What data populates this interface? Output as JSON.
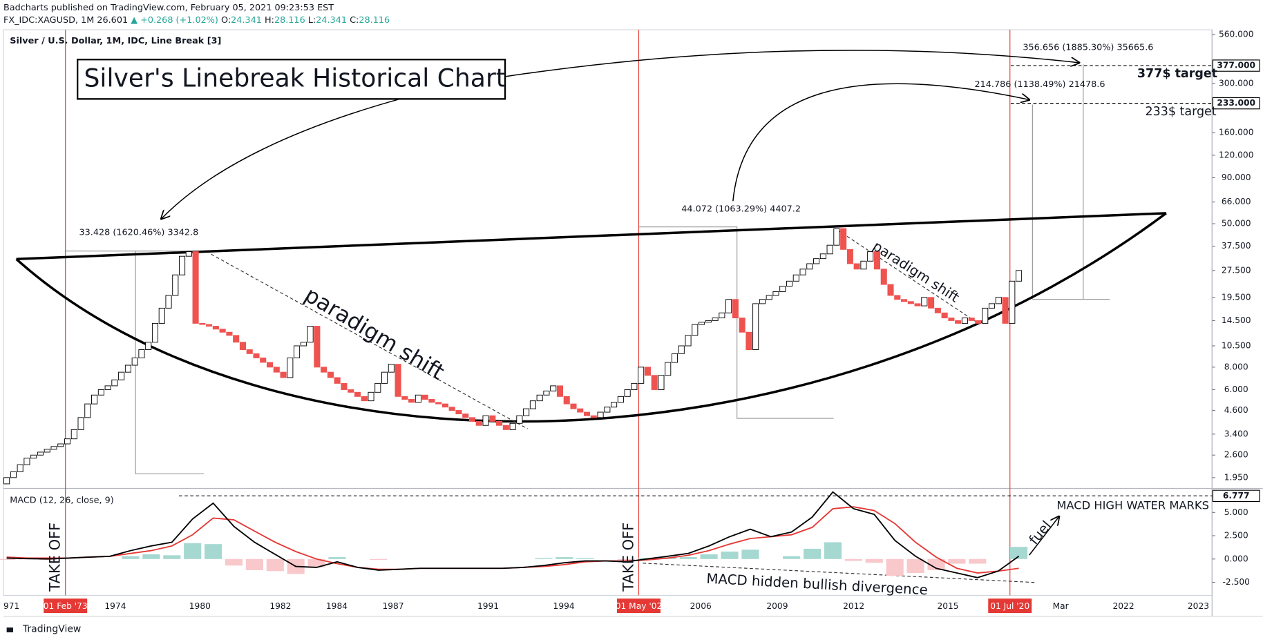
{
  "header": {
    "publisher": "Badcharts published on TradingView.com, February 05, 2021 09:23:53 EST",
    "symbol": "FX_IDC:XAGUSD, 1M",
    "last": 26.601,
    "change": "▲ +0.268 (+1.02%)",
    "ohlc": [
      {
        "label": "O:",
        "value": 24.341
      },
      {
        "label": "H:",
        "value": 28.116
      },
      {
        "label": "L:",
        "value": 24.341
      },
      {
        "label": "C:",
        "value": 28.116
      }
    ]
  },
  "chart_data": [
    {
      "type": "linebreak",
      "title": "Silver / U.S. Dollar, 1M, IDC, Line Break [3]",
      "log_scale": true,
      "up_color": "#ffffff",
      "down_color": "#ef5350",
      "outline_color": "#000000",
      "first_open": 1.8,
      "values": [
        1.95,
        2.1,
        2.3,
        2.5,
        2.6,
        2.7,
        2.8,
        2.9,
        3.0,
        3.2,
        3.6,
        4.2,
        5.0,
        5.6,
        6.0,
        6.3,
        6.8,
        7.5,
        8.2,
        9,
        10,
        11,
        14,
        17,
        20,
        26,
        33,
        35,
        14,
        13.8,
        13.5,
        13,
        12.5,
        12,
        11,
        10,
        9.5,
        9,
        8.5,
        8,
        7.5,
        7,
        9,
        10.5,
        11,
        13.5,
        8,
        7.5,
        7,
        6.5,
        6,
        5.8,
        5.5,
        5.2,
        5.8,
        6.5,
        7.5,
        8.3,
        5.5,
        5.3,
        5.1,
        5.6,
        5.3,
        5.1,
        5.0,
        4.8,
        4.6,
        4.4,
        4.2,
        4.0,
        3.8,
        4.3,
        4.0,
        3.8,
        3.6,
        3.9,
        4.3,
        4.7,
        5.2,
        5.6,
        5.9,
        6.3,
        5.5,
        5.0,
        4.7,
        4.5,
        4.3,
        4.2,
        4.5,
        4.8,
        5.1,
        5.5,
        6.0,
        6.5,
        8.0,
        7.2,
        6.0,
        7.2,
        8.5,
        9.5,
        10.5,
        12,
        13.8,
        14.2,
        14.5,
        15,
        16,
        19,
        15,
        12.5,
        10,
        18,
        19,
        20,
        21,
        22.5,
        24,
        26,
        28,
        30,
        32,
        34,
        38,
        47,
        36,
        30,
        28,
        31,
        35,
        28,
        23,
        20,
        19,
        18.5,
        18,
        17.5,
        19.5,
        17,
        16,
        15,
        14.5,
        14,
        15,
        14.5,
        14,
        17,
        18,
        19.5,
        14,
        24,
        27.5
      ],
      "ylim": [
        1.7,
        590
      ],
      "yticks": [
        {
          "value": 1.95,
          "label": "1.950"
        },
        {
          "value": 2.6,
          "label": "2.600"
        },
        {
          "value": 3.4,
          "label": "3.400"
        },
        {
          "value": 4.6,
          "label": "4.600"
        },
        {
          "value": 6,
          "label": "6.000"
        },
        {
          "value": 8,
          "label": "8.000"
        },
        {
          "value": 10.5,
          "label": "10.500"
        },
        {
          "value": 14.5,
          "label": "14.500"
        },
        {
          "value": 19.5,
          "label": "19.500"
        },
        {
          "value": 27.5,
          "label": "27.500"
        },
        {
          "value": 37.5,
          "label": "37.500"
        },
        {
          "value": 50,
          "label": "50.000"
        },
        {
          "value": 66,
          "label": "66.000"
        },
        {
          "value": 90,
          "label": "90.000"
        },
        {
          "value": 120,
          "label": "120.000"
        },
        {
          "value": 160,
          "label": "160.000"
        },
        {
          "value": 300,
          "label": "300.000"
        },
        {
          "value": 560,
          "label": "560.000"
        }
      ],
      "targets": [
        {
          "value": 377,
          "label": "377.000"
        },
        {
          "value": 233,
          "label": "233.000"
        }
      ],
      "xlabels": [
        "971",
        "1974",
        "1980",
        "1982",
        "1984",
        "1987",
        "1991",
        "1994",
        "2006",
        "2009",
        "2012",
        "2015",
        "Mar",
        "2022",
        "2023"
      ],
      "date_tags": [
        "01 Feb '73",
        "01 May '02",
        "01 Jul '20"
      ],
      "date_tag_color": "#e53935"
    },
    {
      "type": "macd",
      "title": "MACD (12, 26, close, 9)",
      "macd_color": "#000000",
      "signal_color": "#e53935",
      "histogram_up_color": "#a5d8d1",
      "histogram_down_color": "#f8c8cb",
      "macd": [
        0.1,
        0.05,
        0.0,
        0.1,
        0.2,
        0.3,
        0.9,
        1.4,
        1.8,
        4.3,
        6.0,
        3.5,
        1.8,
        0.5,
        -0.8,
        -0.9,
        -0.3,
        -0.9,
        -1.2,
        -1.1,
        -1.0,
        -1.0,
        -1.0,
        -1.0,
        -1.0,
        -0.9,
        -0.7,
        -0.4,
        -0.2,
        -0.2,
        -0.3,
        0.0,
        0.3,
        0.6,
        1.4,
        2.4,
        3.2,
        2.4,
        2.9,
        4.5,
        7.2,
        5.4,
        4.8,
        2.0,
        0.3,
        -1.0,
        -1.5,
        -2.0,
        -1.3,
        0.3
      ],
      "signal": [
        0.2,
        0.1,
        0.1,
        0.1,
        0.2,
        0.3,
        0.6,
        0.9,
        1.4,
        2.6,
        4.4,
        4.2,
        3.0,
        1.8,
        0.8,
        0.0,
        -0.5,
        -0.9,
        -1.1,
        -1.1,
        -1.0,
        -1.0,
        -1.0,
        -1.0,
        -1.0,
        -0.9,
        -0.8,
        -0.6,
        -0.3,
        -0.2,
        -0.2,
        -0.1,
        0.1,
        0.4,
        0.9,
        1.6,
        2.2,
        2.4,
        2.6,
        3.4,
        5.4,
        5.6,
        5.2,
        3.8,
        1.8,
        0.2,
        -1.0,
        -1.5,
        -1.3,
        -1.0
      ],
      "histogram": [
        -0.1,
        -0.05,
        -0.1,
        0,
        0,
        0,
        0.3,
        0.5,
        0.4,
        1.7,
        1.6,
        -0.7,
        -1.2,
        -1.3,
        -1.6,
        -0.9,
        0.2,
        0,
        -0.1,
        0,
        0,
        0,
        0,
        0,
        0,
        0,
        0.1,
        0.2,
        0.1,
        0,
        -0.1,
        0.1,
        0.2,
        0.2,
        0.5,
        0.8,
        1.0,
        0,
        0.3,
        1.1,
        1.8,
        -0.2,
        -0.4,
        -1.8,
        -1.5,
        -1.2,
        -0.5,
        -0.5,
        0,
        1.3
      ],
      "ylim": [
        -3.9,
        7.5
      ],
      "yticks": [
        {
          "value": 5,
          "label": "5.000"
        },
        {
          "value": 2.5,
          "label": "2.500"
        },
        {
          "value": 0,
          "label": "0.000"
        },
        {
          "value": -2.5,
          "label": "-2.500"
        }
      ],
      "high_water_mark": 6.777
    }
  ],
  "annotations": {
    "title": "Silver's Linebreak Historical Chart",
    "measure_1": "33.428 (1620.46%) 3342.8",
    "measure_2": "44.072 (1063.29%) 4407.2",
    "measure_3": "356.656 (1885.30%) 35665.6",
    "measure_4": "214.786 (1138.49%) 21478.6",
    "target_1": "377$ target",
    "target_2": "233$ target",
    "shift_1": "paradigm shift",
    "shift_2": "paradigm shift",
    "takeoff_1": "TAKE OFF",
    "takeoff_2": "TAKE OFF",
    "divergence": "MACD hidden bullish divergence",
    "fuel": "fuel",
    "high_water": "MACD HIGH WATER MARKS"
  },
  "footer": "TradingView"
}
